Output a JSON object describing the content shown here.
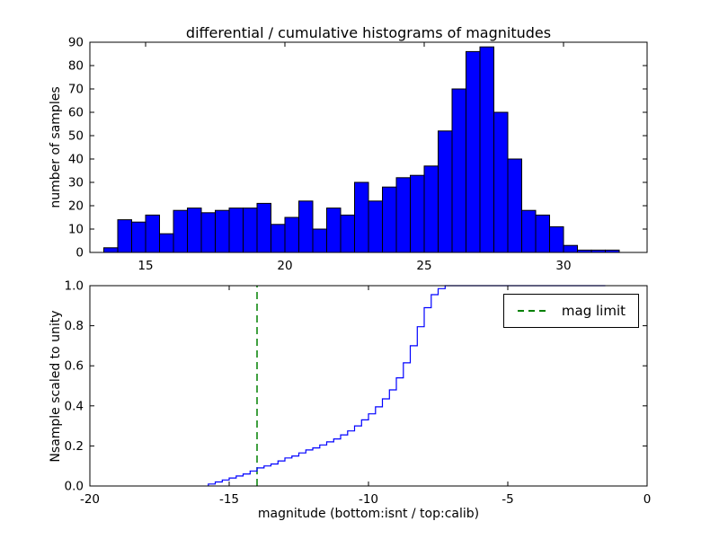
{
  "figure": {
    "background": "#ffffff",
    "axis_color": "#000000"
  },
  "chart_data": [
    {
      "type": "bar",
      "title": "differential / cumulative histograms of magnitudes",
      "ylabel": "number of samples",
      "xlim": [
        13,
        33
      ],
      "ylim": [
        0,
        90
      ],
      "xticks": {
        "values": [
          15,
          20,
          25,
          30
        ],
        "labels": [
          "15",
          "20",
          "25",
          "30"
        ]
      },
      "yticks": {
        "values": [
          0,
          10,
          20,
          30,
          40,
          50,
          60,
          70,
          80,
          90
        ],
        "labels": [
          "0",
          "10",
          "20",
          "30",
          "40",
          "50",
          "60",
          "70",
          "80",
          "90"
        ]
      },
      "bin_start": 13.5,
      "bin_width": 0.5,
      "values": [
        2,
        14,
        13,
        16,
        8,
        18,
        19,
        17,
        18,
        19,
        19,
        21,
        12,
        15,
        22,
        10,
        19,
        16,
        30,
        22,
        28,
        32,
        33,
        37,
        52,
        70,
        86,
        88,
        60,
        40,
        18,
        16,
        11,
        3,
        1,
        1,
        1
      ],
      "bar_color": "#0000ff",
      "bar_edge": "#000000",
      "grid": false
    },
    {
      "type": "line",
      "ylabel": "Nsample scaled to unity",
      "xlabel": "magnitude (bottom:isnt / top:calib)",
      "xlim": [
        -20,
        0
      ],
      "ylim": [
        0,
        1
      ],
      "xticks": {
        "values": [
          -20,
          -15,
          -10,
          -5,
          0
        ],
        "labels": [
          "-20",
          "-15",
          "-10",
          "-5",
          "0"
        ]
      },
      "yticks": {
        "values": [
          0,
          0.2,
          0.4,
          0.6,
          0.8,
          1.0
        ],
        "labels": [
          "0.0",
          "0.2",
          "0.4",
          "0.6",
          "0.8",
          "1.0"
        ]
      },
      "line_color": "#0000ff",
      "step_points": [
        [
          -15.75,
          0.01
        ],
        [
          -15.5,
          0.02
        ],
        [
          -15.25,
          0.03
        ],
        [
          -15.0,
          0.04
        ],
        [
          -14.75,
          0.05
        ],
        [
          -14.5,
          0.06
        ],
        [
          -14.25,
          0.075
        ],
        [
          -14.0,
          0.09
        ],
        [
          -13.75,
          0.1
        ],
        [
          -13.5,
          0.11
        ],
        [
          -13.25,
          0.125
        ],
        [
          -13.0,
          0.14
        ],
        [
          -12.75,
          0.15
        ],
        [
          -12.5,
          0.165
        ],
        [
          -12.25,
          0.18
        ],
        [
          -12.0,
          0.19
        ],
        [
          -11.75,
          0.205
        ],
        [
          -11.5,
          0.22
        ],
        [
          -11.25,
          0.235
        ],
        [
          -11.0,
          0.255
        ],
        [
          -10.75,
          0.275
        ],
        [
          -10.5,
          0.3
        ],
        [
          -10.25,
          0.33
        ],
        [
          -10.0,
          0.36
        ],
        [
          -9.75,
          0.395
        ],
        [
          -9.5,
          0.435
        ],
        [
          -9.25,
          0.48
        ],
        [
          -9.0,
          0.54
        ],
        [
          -8.75,
          0.615
        ],
        [
          -8.5,
          0.7
        ],
        [
          -8.25,
          0.795
        ],
        [
          -8.0,
          0.89
        ],
        [
          -7.75,
          0.955
        ],
        [
          -7.5,
          0.985
        ],
        [
          -7.25,
          1.0
        ],
        [
          -1.5,
          1.0
        ]
      ],
      "mag_limit_x": -14,
      "mag_limit_color": "#008000",
      "legend": [
        "mag limit"
      ],
      "legend_position": "upper right",
      "grid": false
    }
  ]
}
